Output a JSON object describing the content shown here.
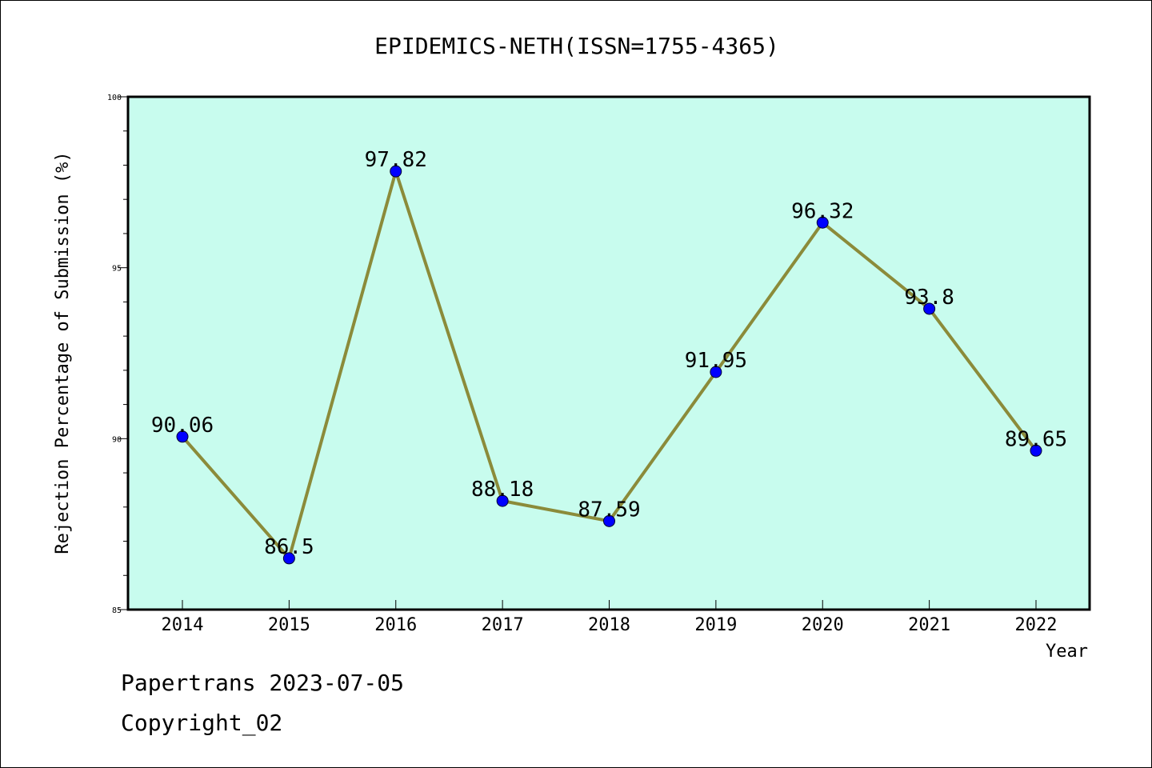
{
  "chart_data": {
    "type": "line",
    "title": "EPIDEMICS-NETH(ISSN=1755-4365)",
    "xlabel": "Year",
    "ylabel": "Rejection Percentage of Submission (%)",
    "categories": [
      "2014",
      "2015",
      "2016",
      "2017",
      "2018",
      "2019",
      "2020",
      "2021",
      "2022"
    ],
    "values": [
      90.06,
      86.5,
      97.82,
      88.18,
      87.59,
      91.95,
      96.32,
      93.8,
      89.65
    ],
    "data_labels": [
      "90.06",
      "86.5",
      "97.82",
      "88.18",
      "87.59",
      "91.95",
      "96.32",
      "93.8",
      "89.65"
    ],
    "ylim": [
      85,
      100
    ],
    "yticks": [
      85,
      90,
      95,
      100
    ],
    "yminor_step": 1,
    "grid": false,
    "colors": {
      "plot_background": "#c8fcee",
      "line": "#8b8b3a",
      "marker": "#0000ff",
      "axes": "#000000"
    }
  },
  "footer": {
    "line1": "Papertrans 2023-07-05",
    "line2": "Copyright_02"
  }
}
